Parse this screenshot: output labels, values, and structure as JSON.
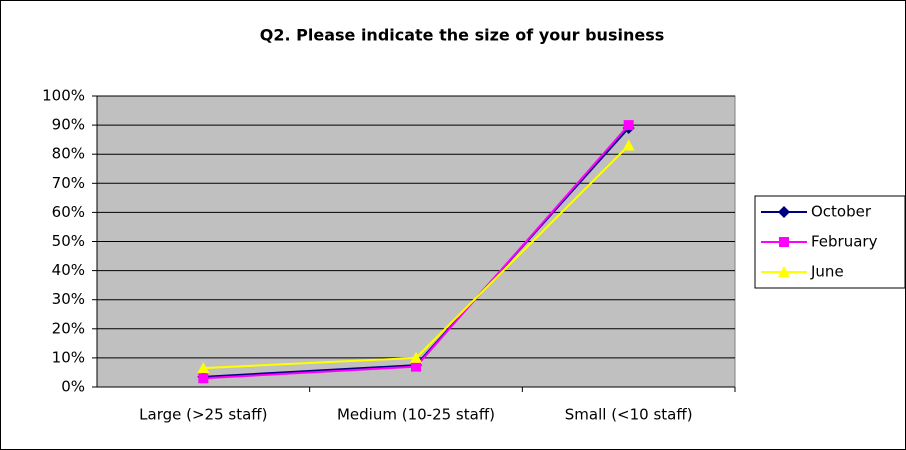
{
  "chart_data": {
    "type": "line",
    "title": "Q2. Please indicate the size of your business",
    "categories": [
      "Large (>25 staff)",
      "Medium (10-25 staff)",
      "Small (<10 staff)"
    ],
    "series": [
      {
        "name": "October",
        "color": "#000080",
        "marker": "diamond",
        "values": [
          3.5,
          7.5,
          89
        ]
      },
      {
        "name": "February",
        "color": "#ff00ff",
        "marker": "square",
        "values": [
          3,
          7,
          90
        ]
      },
      {
        "name": "June",
        "color": "#ffff00",
        "marker": "triangle",
        "values": [
          6.5,
          10,
          83
        ]
      }
    ],
    "ylim": [
      0,
      100
    ],
    "yticks": [
      {
        "value": 0,
        "label": "0%"
      },
      {
        "value": 10,
        "label": "10%"
      },
      {
        "value": 20,
        "label": "20%"
      },
      {
        "value": 30,
        "label": "30%"
      },
      {
        "value": 40,
        "label": "40%"
      },
      {
        "value": 50,
        "label": "50%"
      },
      {
        "value": 60,
        "label": "60%"
      },
      {
        "value": 70,
        "label": "70%"
      },
      {
        "value": 80,
        "label": "80%"
      },
      {
        "value": 90,
        "label": "90%"
      },
      {
        "value": 100,
        "label": "100%"
      }
    ],
    "grid": true,
    "legend": "right",
    "plot_background": "#c0c0c0"
  }
}
